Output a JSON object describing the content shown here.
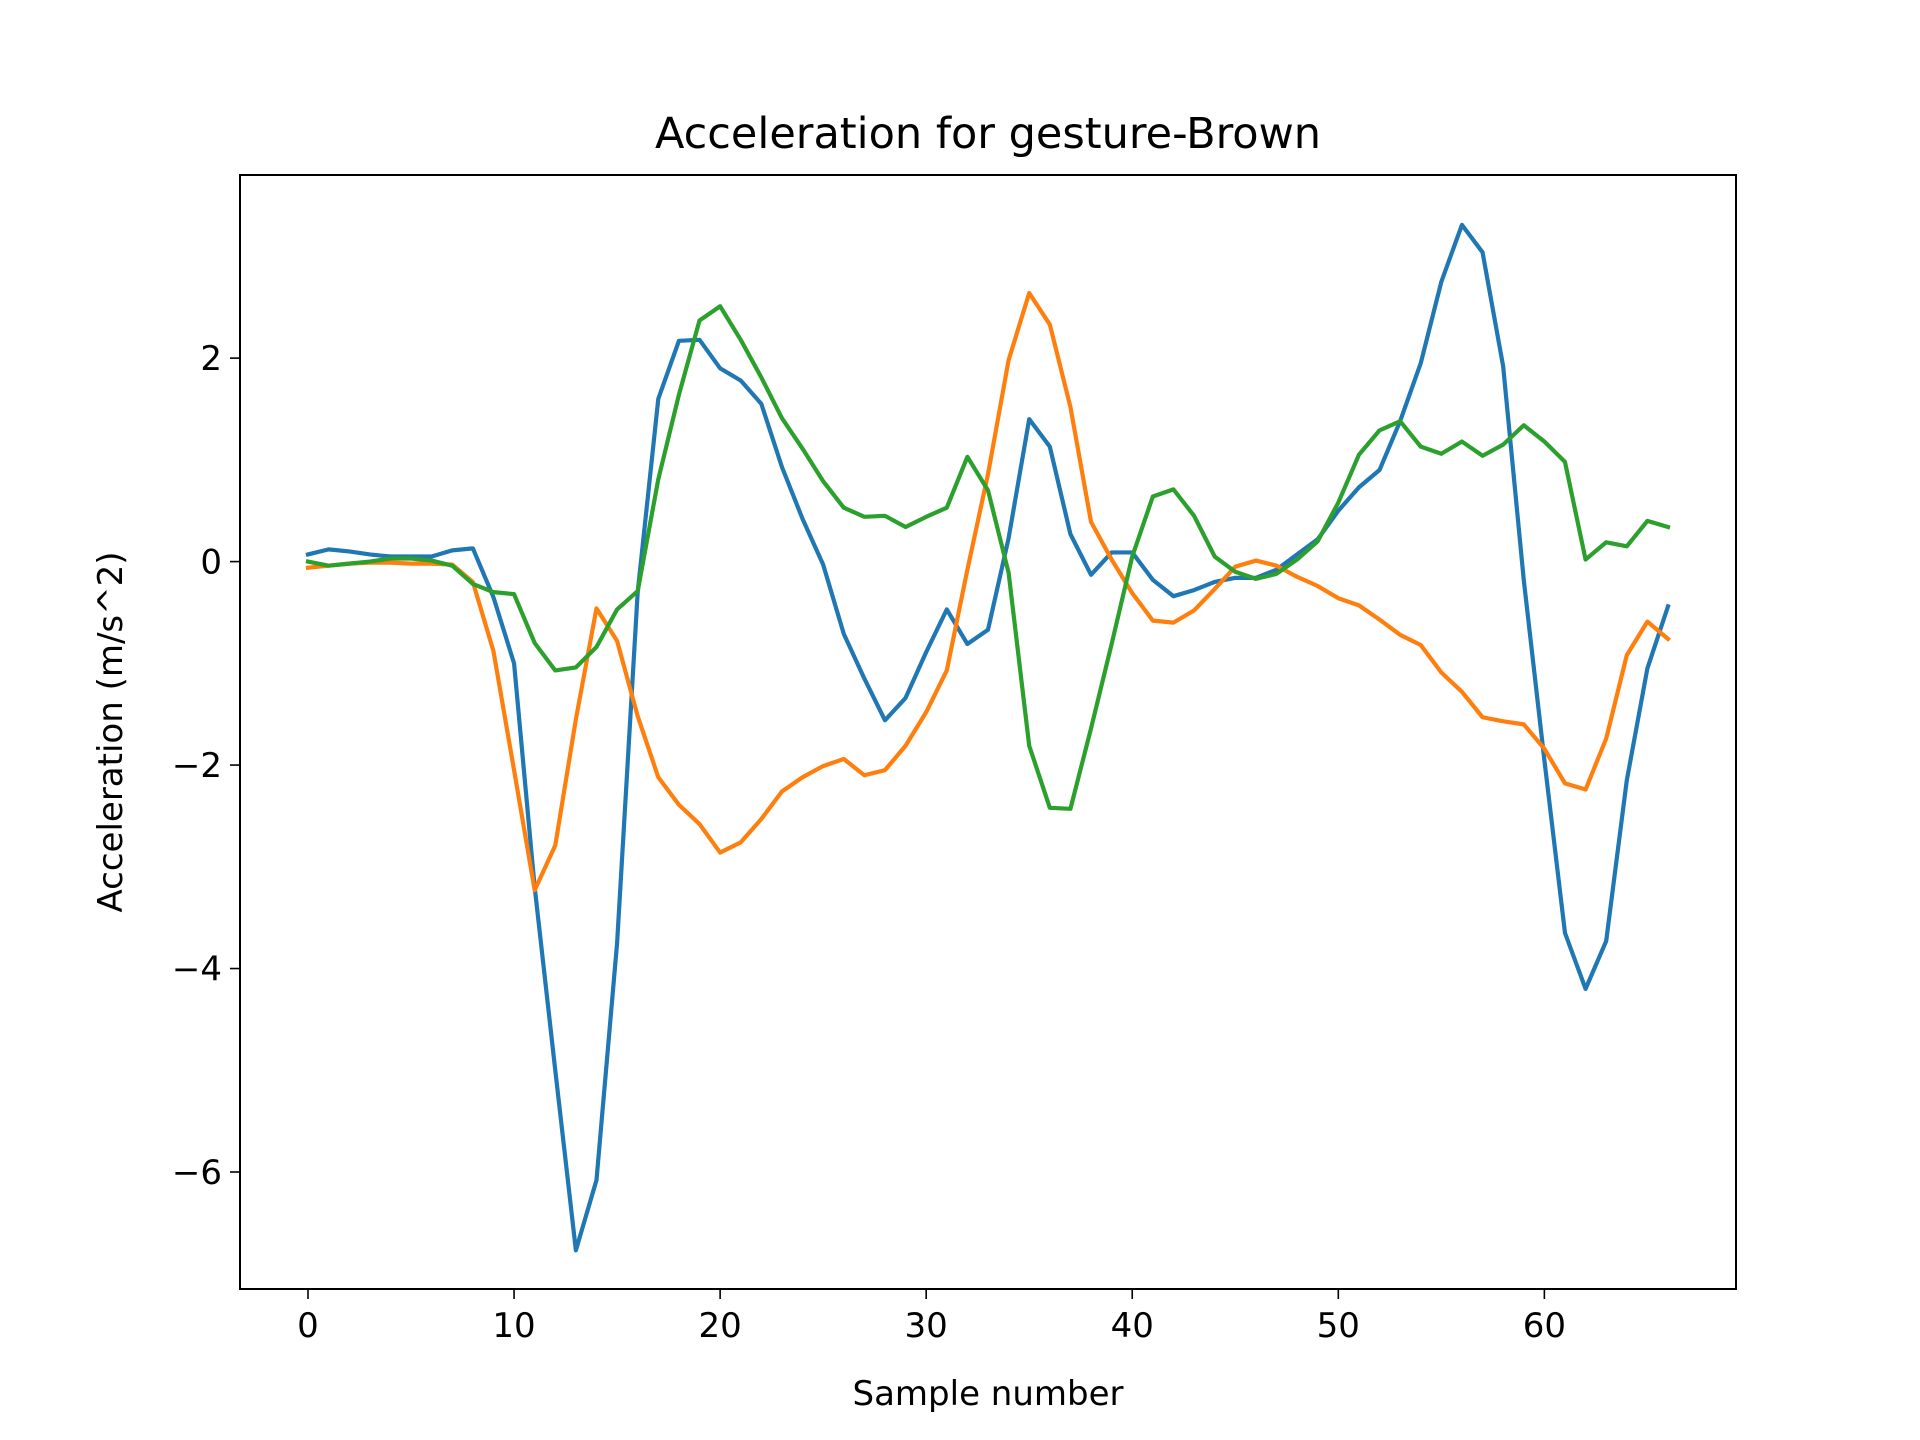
{
  "chart_data": {
    "type": "line",
    "title": "Acceleration for gesture-Brown",
    "xlabel": "Sample number",
    "ylabel": "Acceleration (m/s^2)",
    "xlim": [
      -3.3,
      69.3
    ],
    "ylim": [
      -7.15,
      3.8
    ],
    "xticks": [
      0,
      10,
      20,
      30,
      40,
      50,
      60
    ],
    "yticks": [
      -6,
      -4,
      -2,
      0,
      2
    ],
    "xtick_labels": [
      "0",
      "10",
      "20",
      "30",
      "40",
      "50",
      "60"
    ],
    "ytick_labels": [
      "−6",
      "−4",
      "−2",
      "0",
      "2"
    ],
    "grid": false,
    "legend": "none",
    "x": [
      0,
      1,
      2,
      3,
      4,
      5,
      6,
      7,
      8,
      9,
      10,
      11,
      12,
      13,
      14,
      15,
      16,
      17,
      18,
      19,
      20,
      21,
      22,
      23,
      24,
      25,
      26,
      27,
      28,
      29,
      30,
      31,
      32,
      33,
      34,
      35,
      36,
      37,
      38,
      39,
      40,
      41,
      42,
      43,
      44,
      45,
      46,
      47,
      48,
      49,
      50,
      51,
      52,
      53,
      54,
      55,
      56,
      57,
      58,
      59,
      60,
      61,
      62,
      63,
      64,
      65,
      66
    ],
    "series": [
      {
        "color": "#1f77b4",
        "values": [
          0.07,
          0.12,
          0.1,
          0.07,
          0.05,
          0.05,
          0.05,
          0.11,
          0.13,
          -0.35,
          -1.0,
          -3.2,
          -5.0,
          -6.77,
          -6.08,
          -3.75,
          -0.3,
          1.6,
          2.17,
          2.18,
          1.9,
          1.78,
          1.55,
          0.93,
          0.42,
          -0.03,
          -0.71,
          -1.15,
          -1.56,
          -1.34,
          -0.89,
          -0.47,
          -0.81,
          -0.67,
          0.23,
          1.4,
          1.13,
          0.27,
          -0.13,
          0.09,
          0.09,
          -0.18,
          -0.34,
          -0.28,
          -0.2,
          -0.16,
          -0.16,
          -0.08,
          0.07,
          0.22,
          0.5,
          0.73,
          0.9,
          1.38,
          1.95,
          2.75,
          3.31,
          3.04,
          1.92,
          -0.18,
          -1.95,
          -3.65,
          -4.2,
          -3.73,
          -2.15,
          -1.05,
          -0.44
        ]
      },
      {
        "color": "#ff7f0e",
        "values": [
          -0.06,
          -0.04,
          -0.02,
          -0.01,
          -0.01,
          -0.02,
          -0.02,
          -0.03,
          -0.2,
          -0.88,
          -2.05,
          -3.23,
          -2.79,
          -1.55,
          -0.46,
          -0.78,
          -1.52,
          -2.12,
          -2.39,
          -2.58,
          -2.86,
          -2.76,
          -2.53,
          -2.26,
          -2.12,
          -2.01,
          -1.94,
          -2.1,
          -2.05,
          -1.81,
          -1.48,
          -1.07,
          -0.08,
          0.86,
          1.98,
          2.64,
          2.33,
          1.52,
          0.39,
          0.02,
          -0.31,
          -0.58,
          -0.6,
          -0.48,
          -0.27,
          -0.05,
          0.01,
          -0.04,
          -0.15,
          -0.24,
          -0.36,
          -0.43,
          -0.57,
          -0.72,
          -0.82,
          -1.09,
          -1.28,
          -1.53,
          -1.57,
          -1.6,
          -1.84,
          -2.18,
          -2.24,
          -1.74,
          -0.92,
          -0.59,
          -0.76
        ]
      },
      {
        "color": "#2ca02c",
        "values": [
          0.0,
          -0.04,
          -0.02,
          0.0,
          0.03,
          0.03,
          0.01,
          -0.04,
          -0.22,
          -0.3,
          -0.32,
          -0.8,
          -1.07,
          -1.04,
          -0.84,
          -0.47,
          -0.29,
          0.81,
          1.64,
          2.37,
          2.51,
          2.18,
          1.81,
          1.41,
          1.11,
          0.79,
          0.53,
          0.44,
          0.45,
          0.34,
          0.44,
          0.53,
          1.03,
          0.7,
          -0.11,
          -1.81,
          -2.42,
          -2.43,
          -1.64,
          -0.81,
          0.05,
          0.64,
          0.71,
          0.45,
          0.05,
          -0.1,
          -0.17,
          -0.12,
          0.02,
          0.2,
          0.58,
          1.05,
          1.29,
          1.38,
          1.13,
          1.06,
          1.18,
          1.04,
          1.15,
          1.34,
          1.18,
          0.98,
          0.02,
          0.19,
          0.15,
          0.4,
          0.34
        ]
      }
    ]
  }
}
